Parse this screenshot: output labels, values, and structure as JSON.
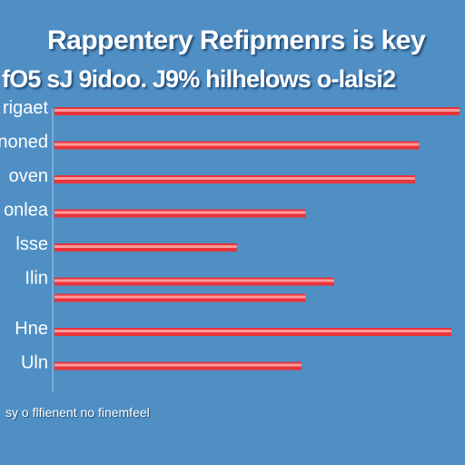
{
  "chart_data": {
    "type": "bar",
    "orientation": "horizontal",
    "title": "Rappentery Refipmenrs is key",
    "subtitle": "fO5 sJ 9idoo. J9% hilhelows o-lalsi2",
    "footnote": "sy o flfienent no finemfeel",
    "categories": [
      "rigaet",
      "noned",
      "oven",
      "onlea",
      "lsse",
      "Ilin",
      "Hne",
      "Uln"
    ],
    "values": [
      100,
      90,
      89,
      62,
      45,
      69,
      98,
      61
    ],
    "secondary_values": [
      null,
      null,
      null,
      null,
      null,
      62,
      null,
      null
    ],
    "xlim": [
      0,
      100
    ],
    "legend": "none",
    "grid": false,
    "colors": {
      "background": "#4f8fc4",
      "bar": "#e8343a",
      "bar_highlight": "#ff9a9a",
      "text": "#ffffff",
      "axis": "#ffffff"
    }
  }
}
